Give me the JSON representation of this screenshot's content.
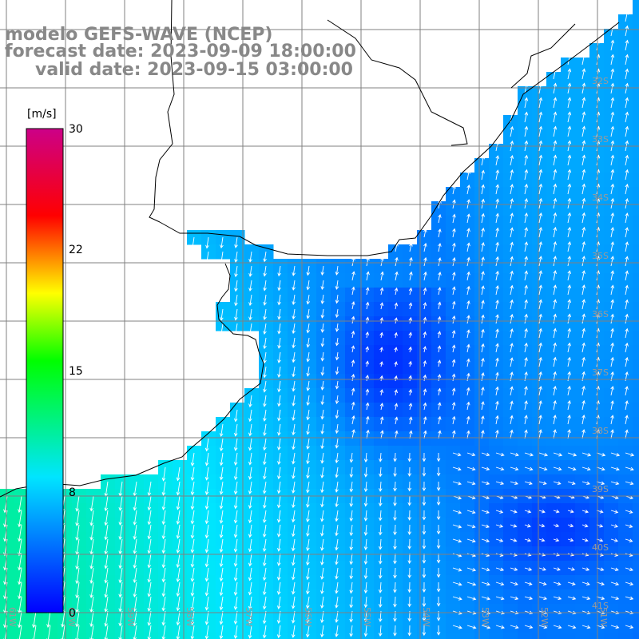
{
  "title": {
    "model": "modelo GEFS-WAVE (NCEP)",
    "forecast": "forecast date: 2023-09-09 18:00:00",
    "valid": "valid date: 2023-09-15 03:00:00"
  },
  "colorbar": {
    "unit_label": "[m/s]",
    "ticks": [
      "30",
      "22",
      "15",
      "8",
      "0"
    ],
    "range": [
      0,
      30
    ],
    "colors": [
      "#0000ff",
      "#00e5ff",
      "#00ff00",
      "#ffff00",
      "#ff0000",
      "#cc0088"
    ]
  },
  "lat_labels": [
    "32S",
    "33S",
    "34S",
    "35S",
    "36S",
    "37S",
    "38S",
    "39S",
    "40S",
    "41S"
  ],
  "lon_labels": [
    "61W",
    "60W",
    "59W",
    "58W",
    "57W",
    "56W",
    "55W",
    "54W",
    "53W",
    "52W",
    "51W",
    "50W"
  ],
  "field": {
    "description_units": "m/s",
    "max_in_view_approx": 10,
    "min_in_view_approx": 1
  }
}
